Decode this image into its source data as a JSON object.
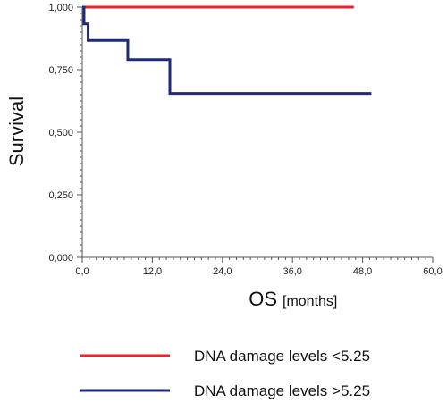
{
  "chart_data": {
    "type": "line",
    "title": "",
    "xlabel": "OS",
    "xlabel_unit": "[months]",
    "ylabel": "Survival",
    "xlim": [
      0,
      60
    ],
    "ylim": [
      0,
      1
    ],
    "x_ticks": [
      0,
      12,
      24,
      36,
      48,
      60
    ],
    "x_tick_labels": [
      "0,0",
      "12,0",
      "24,0",
      "36,0",
      "48,0",
      "60,0"
    ],
    "y_ticks": [
      0,
      0.25,
      0.5,
      0.75,
      1
    ],
    "y_tick_labels": [
      "0,000",
      "0,250",
      "0,500",
      "0,750",
      "1,000"
    ],
    "grid": false,
    "legend_position": "bottom",
    "series": [
      {
        "name": "DNA damage levels <5.25",
        "color": "#e8232b",
        "step": true,
        "points": [
          [
            0,
            1.0
          ],
          [
            46.5,
            1.0
          ]
        ]
      },
      {
        "name": "DNA damage levels >5.25",
        "color": "#1f2a7a",
        "step": true,
        "points": [
          [
            0,
            1.0
          ],
          [
            0.3,
            0.933
          ],
          [
            1.0,
            0.867
          ],
          [
            7.8,
            0.79
          ],
          [
            15.0,
            0.655
          ],
          [
            49.5,
            0.655
          ]
        ]
      }
    ]
  }
}
